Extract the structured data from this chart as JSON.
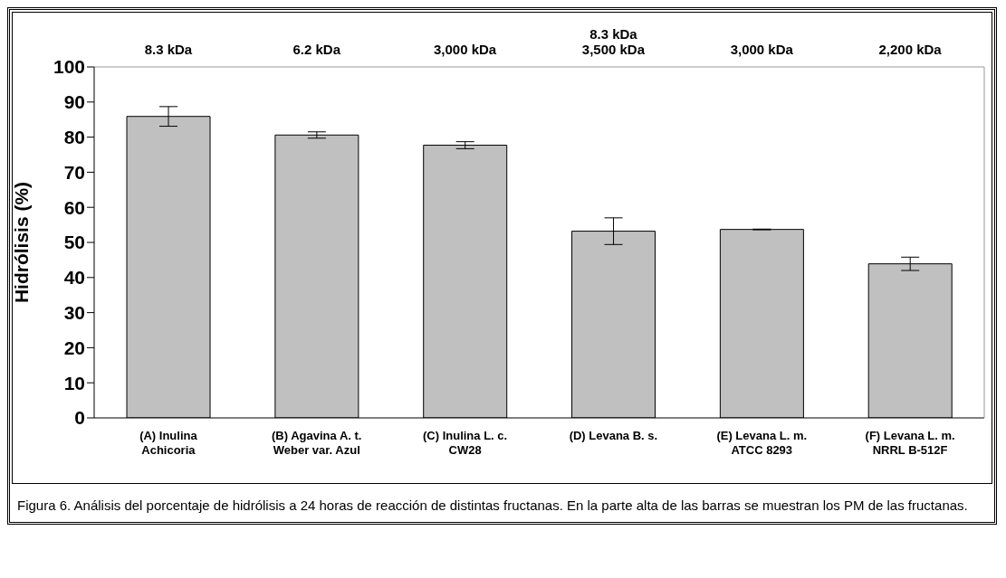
{
  "chart_data": {
    "type": "bar",
    "ylabel": "Hidrólisis (%)",
    "categories": [
      "(A) Inulina Achicoria",
      "(B) Agavina A. t. Weber var. Azul",
      "(C) Inulina L. c. CW28",
      "(D) Levana B. s.",
      "(E) Levana L. m. ATCC 8293",
      "(F) Levana L. m. NRRL B-512F"
    ],
    "values": [
      85.9,
      80.6,
      77.7,
      53.2,
      53.7,
      43.9
    ],
    "errors": [
      2.8,
      0.9,
      1.0,
      3.8,
      0.1,
      1.9
    ],
    "color": "#c0c0c0",
    "ylim": [
      0,
      100
    ],
    "yticks": [
      0,
      10,
      20,
      30,
      40,
      50,
      60,
      70,
      80,
      90,
      100
    ],
    "grid": false,
    "legend": false,
    "annotations": [
      "8.3 kDa",
      "6.2 kDa",
      "3,000 kDa",
      "8.3 kDa\n3,500 kDa",
      "3,000 kDa",
      "2,200 kDa",
      "Figura 6. Análisis del porcentaje de hidrólisis a 24 horas de reacción de distintas fructanas. En la parte alta de las barras se muestran los PM de las fructanas."
    ]
  }
}
